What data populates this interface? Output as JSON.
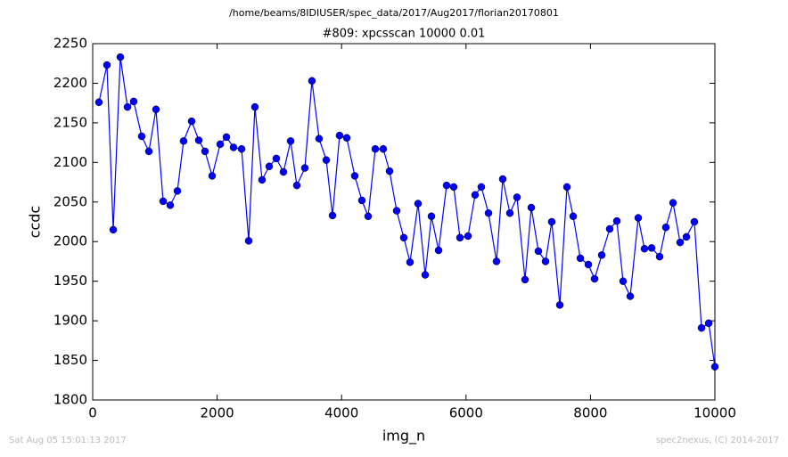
{
  "chart_data": {
    "type": "line",
    "title": "#809: xpcsscan 10000 0.01",
    "suptitle": "/home/beams/8IDIUSER/spec_data/2017/Aug2017/florian20170801",
    "xlabel": "img_n",
    "ylabel": "ccdc",
    "footer_left": "Sat Aug 05 15:01:13 2017",
    "footer_right": "spec2nexus, (C) 2014-2017",
    "x": [
      100,
      229,
      330,
      444,
      559,
      659,
      788,
      903,
      1017,
      1132,
      1246,
      1361,
      1461,
      1590,
      1705,
      1805,
      1920,
      2049,
      2149,
      2264,
      2393,
      2507,
      2607,
      2722,
      2837,
      2951,
      3066,
      3181,
      3281,
      3410,
      3524,
      3639,
      3754,
      3854,
      3968,
      4083,
      4212,
      4327,
      4427,
      4542,
      4670,
      4771,
      4885,
      5000,
      5100,
      5229,
      5344,
      5444,
      5559,
      5688,
      5802,
      5903,
      6032,
      6146,
      6246,
      6361,
      6490,
      6590,
      6705,
      6819,
      6948,
      7049,
      7163,
      7278,
      7378,
      7507,
      7622,
      7722,
      7837,
      7966,
      8066,
      8181,
      8309,
      8424,
      8524,
      8639,
      8768,
      8868,
      8983,
      9112,
      9212,
      9327,
      9441,
      9542,
      9670,
      9785,
      9900,
      10000
    ],
    "series": [
      {
        "color": "#0000ff",
        "values": [
          2176,
          2223,
          2015,
          2233,
          2170,
          2177,
          2133,
          2114,
          2167,
          2051,
          2046,
          2064,
          2127,
          2152,
          2128,
          2114,
          2083,
          2123,
          2132,
          2119,
          2117,
          2001,
          2170,
          2078,
          2095,
          2105,
          2088,
          2127,
          2071,
          2093,
          2203,
          2130,
          2103,
          2033,
          2134,
          2131,
          2083,
          2052,
          2032,
          2117,
          2117,
          2089,
          2039,
          2005,
          1974,
          2048,
          1958,
          2032,
          1989,
          2071,
          2069,
          2005,
          2007,
          2059,
          2069,
          2036,
          1975,
          2079,
          2036,
          2056,
          1952,
          2043,
          1988,
          1975,
          2025,
          1920,
          2069,
          2032,
          1979,
          1971,
          1953,
          1983,
          2016,
          2026,
          1950,
          1931,
          2030,
          1991,
          1992,
          1981,
          2018,
          2049,
          1999,
          2006,
          2025,
          1891,
          1897,
          1842
        ]
      }
    ],
    "xlim": [
      0,
      10000
    ],
    "xticks": [
      0,
      2000,
      4000,
      6000,
      8000,
      10000
    ],
    "ylim": [
      1800,
      2250
    ],
    "yticks": [
      1800,
      1850,
      1900,
      1950,
      2000,
      2050,
      2100,
      2150,
      2200,
      2250
    ],
    "grid": false
  }
}
